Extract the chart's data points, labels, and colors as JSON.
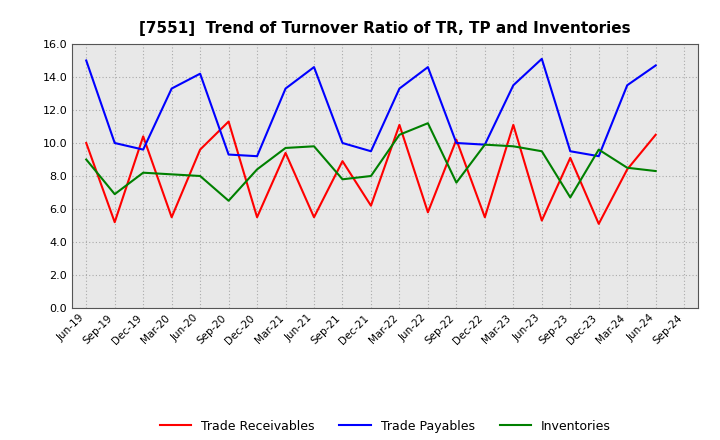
{
  "title": "[7551]  Trend of Turnover Ratio of TR, TP and Inventories",
  "x_labels": [
    "Jun-19",
    "Sep-19",
    "Dec-19",
    "Mar-20",
    "Jun-20",
    "Sep-20",
    "Dec-20",
    "Mar-21",
    "Jun-21",
    "Sep-21",
    "Dec-21",
    "Mar-22",
    "Jun-22",
    "Sep-22",
    "Dec-22",
    "Mar-23",
    "Jun-23",
    "Sep-23",
    "Dec-23",
    "Mar-24",
    "Jun-24",
    "Sep-24"
  ],
  "trade_receivables": [
    10.0,
    5.2,
    10.4,
    5.5,
    9.6,
    11.3,
    5.5,
    9.4,
    5.5,
    8.9,
    6.2,
    11.1,
    5.8,
    10.2,
    5.5,
    11.1,
    5.3,
    9.1,
    5.1,
    8.4,
    10.5,
    null
  ],
  "trade_payables": [
    15.0,
    10.0,
    9.6,
    13.3,
    14.2,
    9.3,
    9.2,
    13.3,
    14.6,
    10.0,
    9.5,
    13.3,
    14.6,
    10.0,
    9.9,
    13.5,
    15.1,
    9.5,
    9.2,
    13.5,
    14.7,
    null
  ],
  "inventories": [
    9.0,
    6.9,
    8.2,
    8.1,
    8.0,
    6.5,
    8.4,
    9.7,
    9.8,
    7.8,
    8.0,
    10.5,
    11.2,
    7.6,
    9.9,
    9.8,
    9.5,
    6.7,
    9.6,
    8.5,
    8.3,
    null
  ],
  "ylim": [
    0.0,
    16.0
  ],
  "yticks": [
    0.0,
    2.0,
    4.0,
    6.0,
    8.0,
    10.0,
    12.0,
    14.0,
    16.0
  ],
  "tr_color": "#ff0000",
  "tp_color": "#0000ff",
  "inv_color": "#008000",
  "background_color": "#ffffff",
  "plot_bg_color": "#e8e8e8",
  "grid_color": "#aaaaaa",
  "legend_labels": [
    "Trade Receivables",
    "Trade Payables",
    "Inventories"
  ]
}
